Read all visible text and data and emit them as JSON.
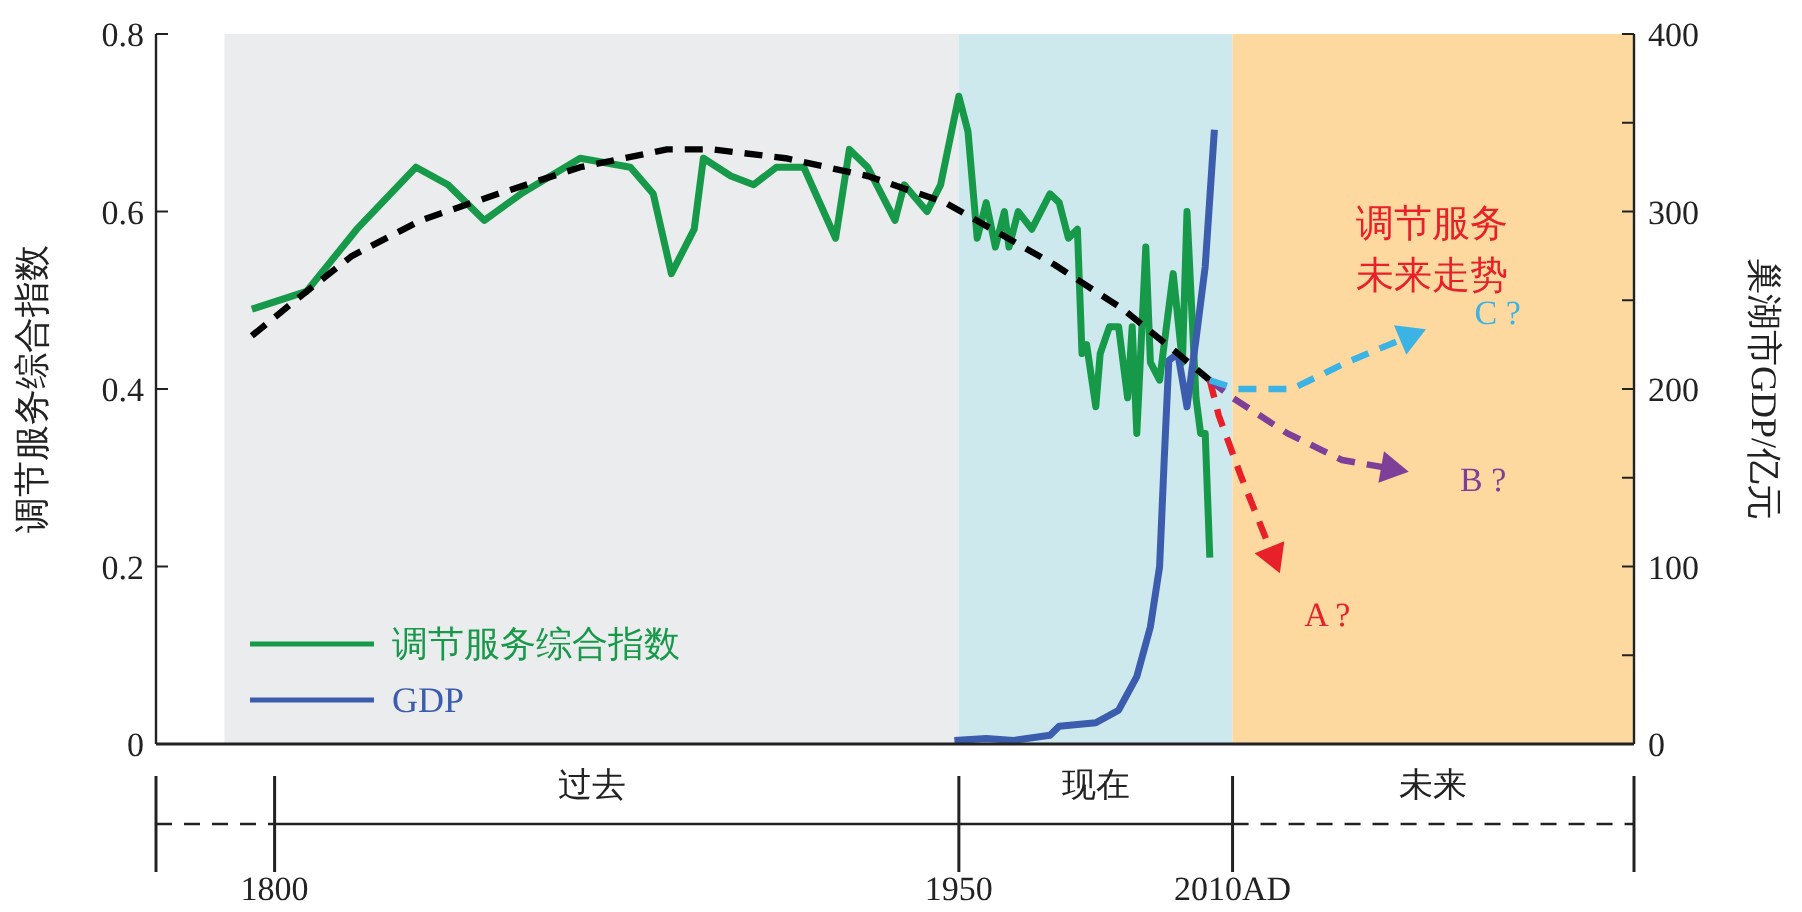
{
  "chart_data": {
    "type": "line",
    "ylabel": "调节服务综合指数",
    "y2label": "巢湖市GDP/亿元",
    "xlim": [
      1774,
      2098
    ],
    "xticks": [
      {
        "value": 1774,
        "label": null
      },
      1800,
      1950,
      {
        "value": 2010,
        "label": "2010AD"
      },
      {
        "value": 2098,
        "label": null
      }
    ],
    "ylim": [
      0,
      0.8
    ],
    "yticks": [
      0,
      0.2,
      0.4,
      0.6,
      0.8
    ],
    "y2lim": [
      0,
      400
    ],
    "y2ticks": [
      0,
      {
        "value": 50,
        "label": null
      },
      100,
      {
        "value": 150,
        "label": null
      },
      200,
      {
        "value": 250,
        "label": null
      },
      300,
      {
        "value": 350,
        "label": null
      },
      400
    ],
    "legend": "bottom left",
    "grid": false,
    "bands": [
      {
        "axis": "x",
        "from": 1789,
        "to": 1950,
        "label": "过去",
        "color": "#ebecee"
      },
      {
        "axis": "x",
        "from": 1950,
        "to": 2010,
        "label": "现在",
        "color": "#cde9ee"
      },
      {
        "axis": "x",
        "from": 2010,
        "to": 2098,
        "label": "未来",
        "color": "#fdd9a0"
      }
    ],
    "series": [
      {
        "name": "调节服务综合指数",
        "color": "#17994a",
        "line_style": "solid",
        "x": [
          1795,
          1807,
          1818,
          1831,
          1838,
          1846,
          1854,
          1867,
          1878,
          1883,
          1887,
          1892,
          1894,
          1900,
          1905,
          1910,
          1916,
          1923,
          1926,
          1930,
          1936,
          1938,
          1943,
          1946,
          1950,
          1952,
          1954,
          1956,
          1958,
          1960,
          1961,
          1963,
          1966,
          1970,
          1972,
          1974,
          1976,
          1977,
          1978,
          1980,
          1981,
          1983,
          1985,
          1987,
          1988,
          1989,
          1991,
          1992,
          1994,
          1997,
          1999,
          2000,
          2002,
          2003,
          2004,
          2005
        ],
        "values": [
          0.49,
          0.51,
          0.58,
          0.65,
          0.63,
          0.59,
          0.62,
          0.66,
          0.65,
          0.62,
          0.53,
          0.58,
          0.66,
          0.64,
          0.63,
          0.65,
          0.65,
          0.57,
          0.67,
          0.65,
          0.59,
          0.63,
          0.6,
          0.63,
          0.73,
          0.69,
          0.57,
          0.61,
          0.56,
          0.6,
          0.56,
          0.6,
          0.58,
          0.62,
          0.61,
          0.57,
          0.58,
          0.44,
          0.45,
          0.38,
          0.44,
          0.47,
          0.47,
          0.39,
          0.47,
          0.35,
          0.56,
          0.43,
          0.41,
          0.53,
          0.43,
          0.6,
          0.39,
          0.35,
          0.35,
          0.21
        ]
      },
      {
        "name": "GDP",
        "color": "#3c5cad",
        "axis": "y2",
        "line_style": "solid",
        "x": [
          1949,
          1956,
          1962,
          1970,
          1972,
          1980,
          1985,
          1989,
          1992,
          1994,
          1995,
          1996,
          1998,
          2000,
          2002,
          2004,
          2006
        ],
        "values": [
          2,
          3,
          2,
          5,
          10,
          12,
          19,
          38,
          66,
          100,
          160,
          216,
          220,
          190,
          228,
          269,
          346
        ]
      },
      {
        "color": "#000000",
        "line_style": "dashed",
        "x": [
          1795,
          1807,
          1817,
          1832,
          1849,
          1867,
          1886,
          1896,
          1912,
          1930,
          1947,
          1971,
          1986,
          1998,
          2005
        ],
        "values": [
          0.46,
          0.51,
          0.55,
          0.59,
          0.62,
          0.65,
          0.67,
          0.67,
          0.66,
          0.64,
          0.61,
          0.54,
          0.49,
          0.44,
          0.41
        ]
      },
      {
        "name": "A ?",
        "color": "#e8202a",
        "line_style": "dashed",
        "x": [
          2005,
          2007,
          2012,
          2019
        ],
        "values": [
          0.41,
          0.37,
          0.3,
          0.21
        ]
      },
      {
        "name": "B ?",
        "color": "#7e3f98",
        "line_style": "dashed",
        "x": [
          2005,
          2010,
          2022,
          2034,
          2045
        ],
        "values": [
          0.41,
          0.39,
          0.35,
          0.32,
          0.31
        ]
      },
      {
        "name": "C ?",
        "color": "#3bb4e5",
        "line_style": "dashed",
        "x": [
          2005,
          2011,
          2023,
          2035,
          2049
        ],
        "values": [
          0.41,
          0.4,
          0.4,
          0.43,
          0.46
        ]
      }
    ],
    "annotations": [
      "调节服务",
      "未来走势"
    ]
  }
}
